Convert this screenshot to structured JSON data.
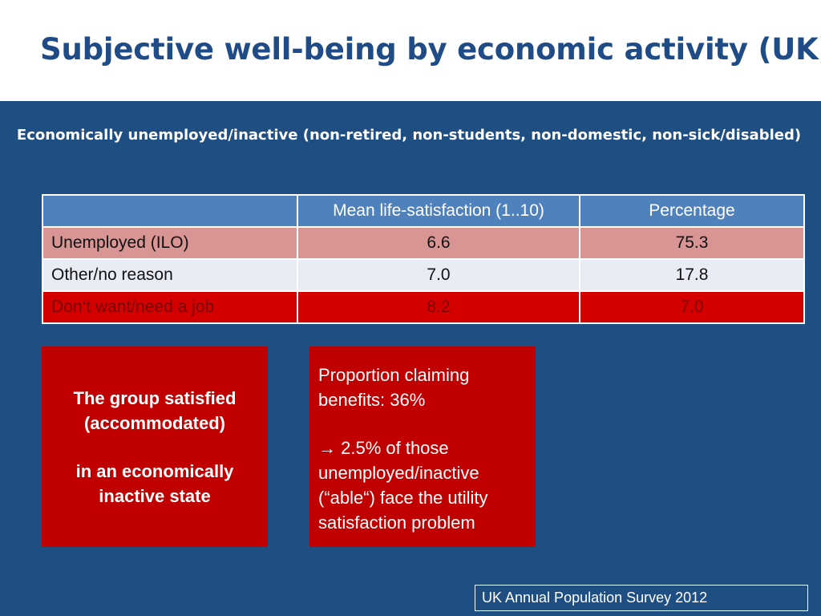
{
  "title": "Subjective well-being by economic activity (UK)",
  "subtitle": "Economically unemployed/inactive (non-retired, non-students, non-domestic, non-sick/disabled)",
  "table": {
    "headers": [
      "",
      "Mean life-satisfaction (1..10)",
      "Percentage"
    ],
    "rows": [
      {
        "label": "Unemployed (ILO)",
        "mean": "6.6",
        "percentage": "75.3"
      },
      {
        "label": "Other/no reason",
        "mean": "7.0",
        "percentage": "17.8"
      },
      {
        "label": "Don‘t want/need a job",
        "mean": "8.2",
        "percentage": "7.0"
      }
    ]
  },
  "left_box": {
    "line1": "The group satisfied (accommodated)",
    "line2": "in an economically inactive state"
  },
  "right_box": {
    "line1": "Proportion claiming benefits: 36%",
    "arrow_icon": "right-arrow-icon",
    "line2": " 2.5% of those unemployed/inactive (“able“) face the utility satisfaction problem"
  },
  "source": "UK Annual Population Survey 2012",
  "colors": {
    "title": "#1f4b86",
    "background": "#1f4e83",
    "header": "#4f81bd",
    "row_pink": "#d99594",
    "row_light": "#e9ecf4",
    "row_red": "#d40000",
    "box_red": "#c00000"
  }
}
